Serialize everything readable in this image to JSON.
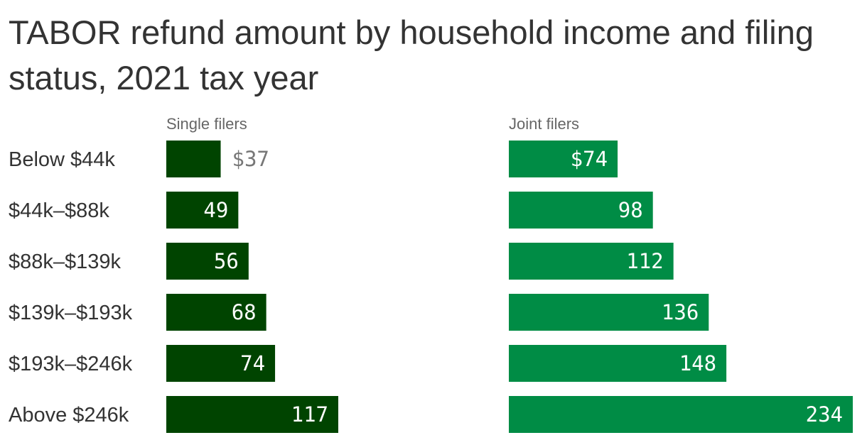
{
  "title": "TABOR refund amount by household income and filing status, 2021 tax year",
  "chart_data": {
    "type": "bar",
    "orientation": "horizontal",
    "categories": [
      "Below $44k",
      "$44k–$88k",
      "$88k–$139k",
      "$139k–$193k",
      "$193k–$246k",
      "Above $246k"
    ],
    "series": [
      {
        "name": "Single filers",
        "values": [
          37,
          49,
          56,
          68,
          74,
          117
        ],
        "labels": [
          "$37",
          "49",
          "56",
          "68",
          "74",
          "117"
        ],
        "color": "#004400"
      },
      {
        "name": "Joint filers",
        "values": [
          74,
          98,
          112,
          136,
          148,
          234
        ],
        "labels": [
          "$74",
          "98",
          "112",
          "136",
          "148",
          "234"
        ],
        "color": "#008c45"
      }
    ],
    "xlim": [
      0,
      234
    ],
    "grid": false,
    "legend": "none"
  }
}
